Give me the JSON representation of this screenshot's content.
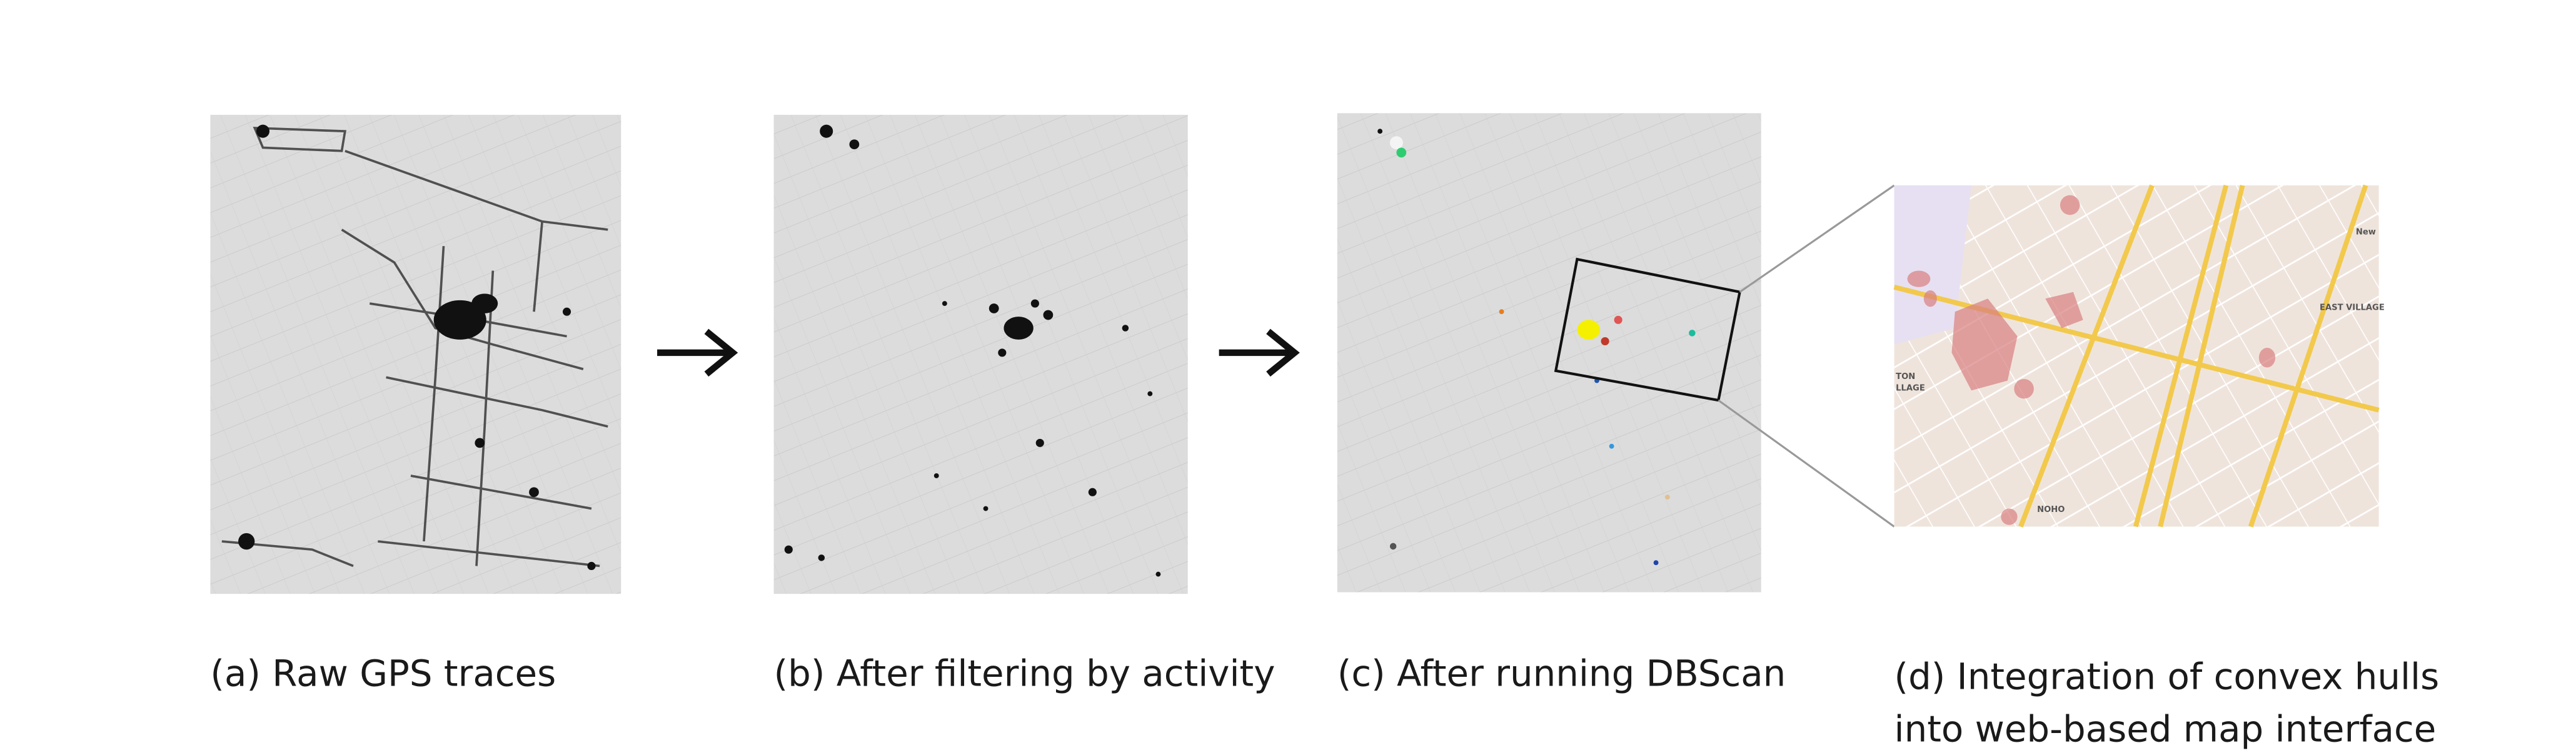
{
  "panels": [
    {
      "caption": "(a) Raw GPS traces"
    },
    {
      "caption": "(b) After filtering by activity"
    },
    {
      "caption": "(c) After running DBScan"
    },
    {
      "caption_lines": [
        "(d) Integration of convex hulls",
        "into web-based map interface"
      ],
      "map_labels": [
        "New",
        "EAST VILLAGE",
        "NOHO",
        "TON",
        "LLAGE"
      ]
    }
  ]
}
